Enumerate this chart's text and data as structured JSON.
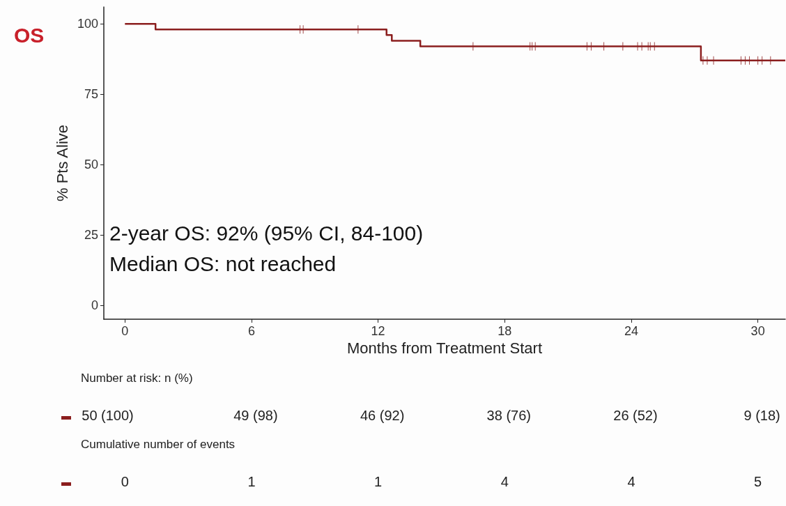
{
  "chart_data": {
    "type": "step",
    "title": "OS",
    "xlabel": "Months from Treatment Start",
    "ylabel": "% Pts Alive",
    "xlim": [
      -1,
      31.3
    ],
    "xticks": [
      0,
      6,
      12,
      18,
      24,
      30
    ],
    "ylim": [
      -5,
      106
    ],
    "yticks": [
      0,
      25,
      50,
      75,
      100
    ],
    "grid": false,
    "series": [
      {
        "color": "#8b1e1e",
        "x": [
          0,
          1.45,
          12.4,
          12.65,
          14.0,
          27.3,
          31.3
        ],
        "values": [
          100,
          98,
          96,
          94,
          92,
          87,
          87
        ],
        "marker": "none"
      },
      {
        "type": "scatter",
        "color": "#8b1e1e",
        "marker": "cross",
        "x": [
          8.3,
          8.45,
          11.05,
          16.5,
          19.2,
          19.3,
          19.45,
          21.9,
          22.1,
          22.7,
          23.6,
          24.3,
          24.5,
          24.8,
          24.9,
          25.1,
          27.4,
          27.6,
          27.9,
          29.2,
          29.4,
          29.6,
          30.0,
          30.2,
          30.6
        ],
        "values": [
          98,
          98,
          98,
          92,
          92,
          92,
          92,
          92,
          92,
          92,
          92,
          92,
          92,
          92,
          92,
          92,
          87,
          87,
          87,
          87,
          87,
          87,
          87,
          87,
          87
        ]
      }
    ],
    "annotations": [
      "2-year OS: 92% (95% CI, 84-100)",
      "Median OS: not reached",
      "Number at risk: n (%)",
      "50 (100)",
      "49 (98)",
      "46 (92)",
      "38 (76)",
      "26 (52)",
      "9 (18)",
      "Cumulative number of events",
      "0",
      "1",
      "1",
      "4",
      "4",
      "5"
    ]
  }
}
